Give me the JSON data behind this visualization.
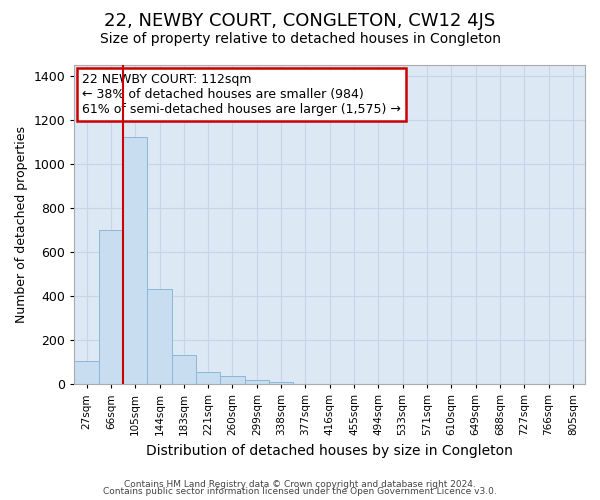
{
  "title": "22, NEWBY COURT, CONGLETON, CW12 4JS",
  "subtitle": "Size of property relative to detached houses in Congleton",
  "xlabel": "Distribution of detached houses by size in Congleton",
  "ylabel": "Number of detached properties",
  "footnote1": "Contains HM Land Registry data © Crown copyright and database right 2024.",
  "footnote2": "Contains public sector information licensed under the Open Government Licence v3.0.",
  "bin_labels": [
    "27sqm",
    "66sqm",
    "105sqm",
    "144sqm",
    "183sqm",
    "221sqm",
    "260sqm",
    "299sqm",
    "338sqm",
    "377sqm",
    "416sqm",
    "455sqm",
    "494sqm",
    "533sqm",
    "571sqm",
    "610sqm",
    "649sqm",
    "688sqm",
    "727sqm",
    "766sqm",
    "805sqm"
  ],
  "bar_values": [
    105,
    700,
    1125,
    430,
    130,
    55,
    35,
    20,
    10,
    0,
    0,
    0,
    0,
    0,
    0,
    0,
    0,
    0,
    0,
    0,
    0
  ],
  "bar_color": "#c8ddf0",
  "bar_edgecolor": "#8ab8d8",
  "grid_color": "#c8d4e8",
  "background_color": "#dce8f4",
  "vline_x": 1.5,
  "vline_color": "#cc0000",
  "annotation_text": "22 NEWBY COURT: 112sqm\n← 38% of detached houses are smaller (984)\n61% of semi-detached houses are larger (1,575) →",
  "annotation_box_color": "#cc0000",
  "ylim": [
    0,
    1450
  ],
  "yticks": [
    0,
    200,
    400,
    600,
    800,
    1000,
    1200,
    1400
  ],
  "title_fontsize": 13,
  "subtitle_fontsize": 10,
  "annotation_fontsize": 9
}
